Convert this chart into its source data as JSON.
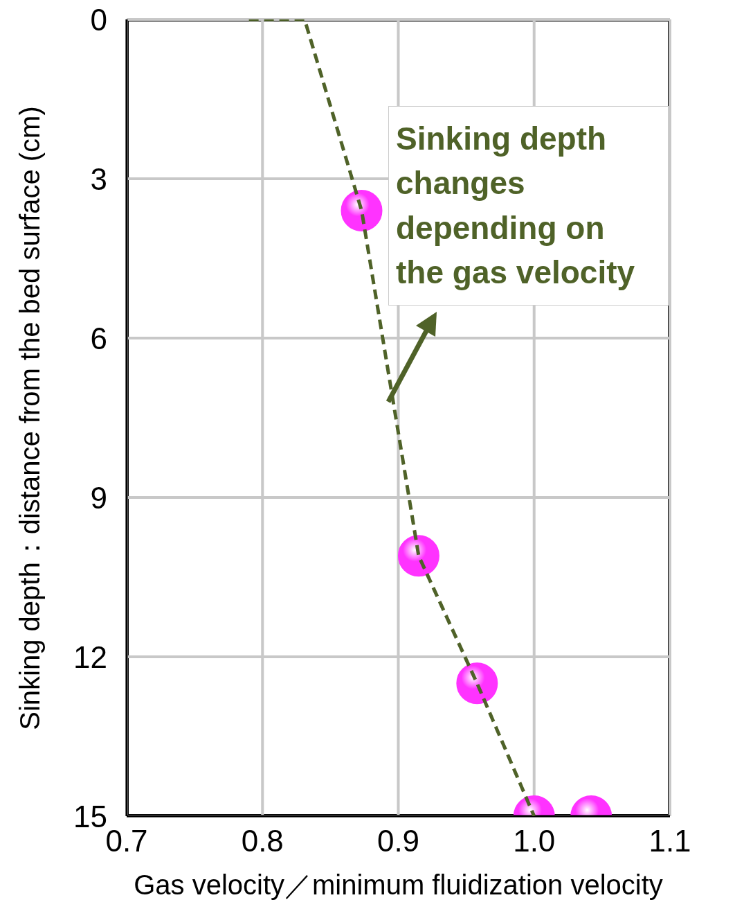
{
  "chart_data": {
    "type": "scatter",
    "xlabel": "Gas velocity／minimum fluidization velocity",
    "ylabel": "Sinking depth：distance from the bed surface (cm)",
    "xlim": [
      0.7,
      1.1
    ],
    "xticks": [
      0.7,
      0.8,
      0.9,
      {
        "value": 1.0,
        "label": "1.0"
      },
      1.1
    ],
    "ylim": [
      15,
      0
    ],
    "yticks": [
      0,
      3,
      6,
      9,
      12,
      15
    ],
    "grid": true,
    "legend": false,
    "annotations": [
      "Sinking depth changes depending on the gas velocity"
    ],
    "series": [
      {
        "type": "line",
        "color": "#4f6228",
        "line_style": "dashed",
        "marker": "none",
        "x": [
          0.79,
          0.831,
          0.873,
          0.915,
          0.958,
          1.0
        ],
        "values": [
          0,
          0,
          3.6,
          10.1,
          12.5,
          15
        ]
      },
      {
        "type": "scatter",
        "color": "#ff33ff",
        "marker": "circle",
        "x": [
          0.873,
          0.915,
          0.958,
          1.0,
          1.042
        ],
        "values": [
          3.6,
          10.1,
          12.5,
          15,
          15
        ]
      }
    ]
  }
}
